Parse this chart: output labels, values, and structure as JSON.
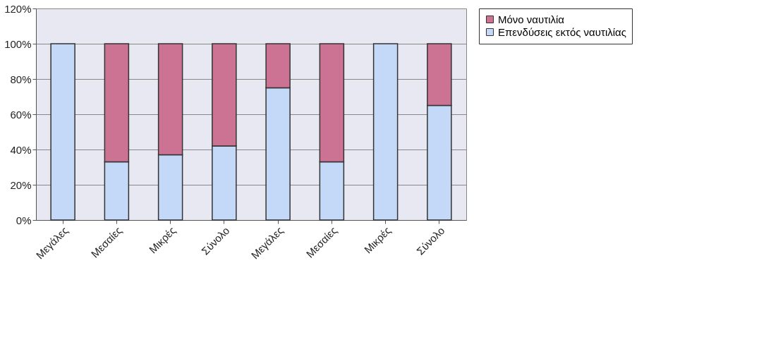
{
  "chart_data": {
    "type": "bar",
    "stacked": true,
    "categories": [
      "Μεγάλες",
      "Μεσαίες",
      "Μικρές",
      "Σύνολο",
      "Μεγάλες",
      "Μεσαίες",
      "Μικρές",
      "Σύνολο"
    ],
    "series": [
      {
        "name": "Επενδύσεις εκτός ναυτιλίας",
        "color": "#c4d8f8",
        "values": [
          100,
          33,
          37,
          42,
          75,
          33,
          100,
          65
        ]
      },
      {
        "name": "Μόνο ναυτιλία",
        "color": "#cc7393",
        "values": [
          null,
          67,
          63,
          58,
          25,
          67,
          null,
          35
        ]
      }
    ],
    "ylim": [
      0,
      120
    ],
    "yticks": [
      {
        "value": 0,
        "label": "0%"
      },
      {
        "value": 20,
        "label": "20%"
      },
      {
        "value": 40,
        "label": "40%"
      },
      {
        "value": 60,
        "label": "60%"
      },
      {
        "value": 80,
        "label": "80%"
      },
      {
        "value": 100,
        "label": "100%"
      },
      {
        "value": 120,
        "label": "120%"
      }
    ],
    "grid": "y",
    "legend": "right"
  }
}
